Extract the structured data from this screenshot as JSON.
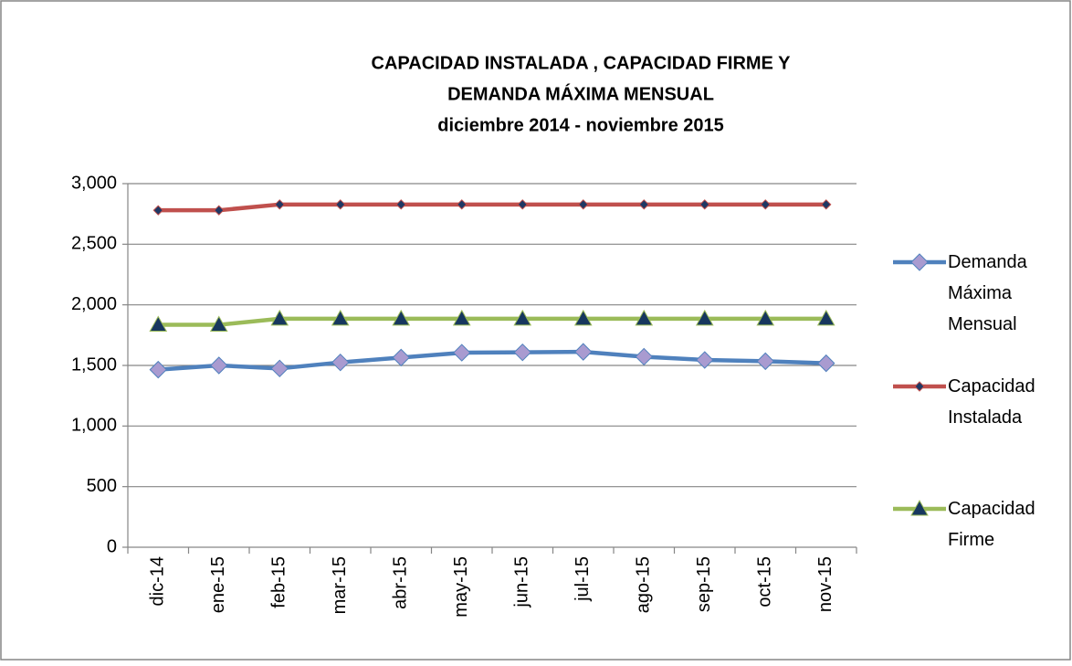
{
  "chart_data": {
    "type": "line",
    "title": "CAPACIDAD  INSTALADA , CAPACIDAD  FIRME  Y",
    "title_line2": "DEMANDA  MÁXIMA  MENSUAL",
    "subtitle": "diciembre  2014   -  noviembre  2015",
    "categories": [
      "dic-14",
      "ene-15",
      "feb-15",
      "mar-15",
      "abr-15",
      "may-15",
      "jun-15",
      "jul-15",
      "ago-15",
      "sep-15",
      "oct-15",
      "nov-15"
    ],
    "series": [
      {
        "name": "Demanda Máxima Mensual",
        "color": "#4f81bd",
        "marker": "diamond",
        "marker_color": "#a99bd0",
        "values": [
          1465,
          1500,
          1475,
          1525,
          1565,
          1605,
          1608,
          1612,
          1572,
          1545,
          1535,
          1518
        ]
      },
      {
        "name": "Capacidad Instalada",
        "color": "#c0504d",
        "marker": "small-diamond",
        "marker_color": "#1f3864",
        "values": [
          2780,
          2780,
          2828,
          2828,
          2828,
          2828,
          2828,
          2828,
          2828,
          2828,
          2828,
          2828
        ]
      },
      {
        "name": "Capacidad Firme",
        "color": "#9bbb59",
        "marker": "triangle",
        "marker_color": "#17375e",
        "values": [
          1835,
          1835,
          1885,
          1885,
          1885,
          1885,
          1885,
          1885,
          1885,
          1885,
          1885,
          1885
        ]
      }
    ],
    "ylim": [
      0,
      3000
    ],
    "yticks": [
      0,
      500,
      {
        "value": 1000,
        "label": "1,000"
      },
      {
        "value": 1500,
        "label": "1,500"
      },
      {
        "value": 2000,
        "label": "2,000"
      },
      {
        "value": 2500,
        "label": "2,500"
      },
      {
        "value": 3000,
        "label": "3,000"
      }
    ],
    "grid": true,
    "legend": "right"
  }
}
